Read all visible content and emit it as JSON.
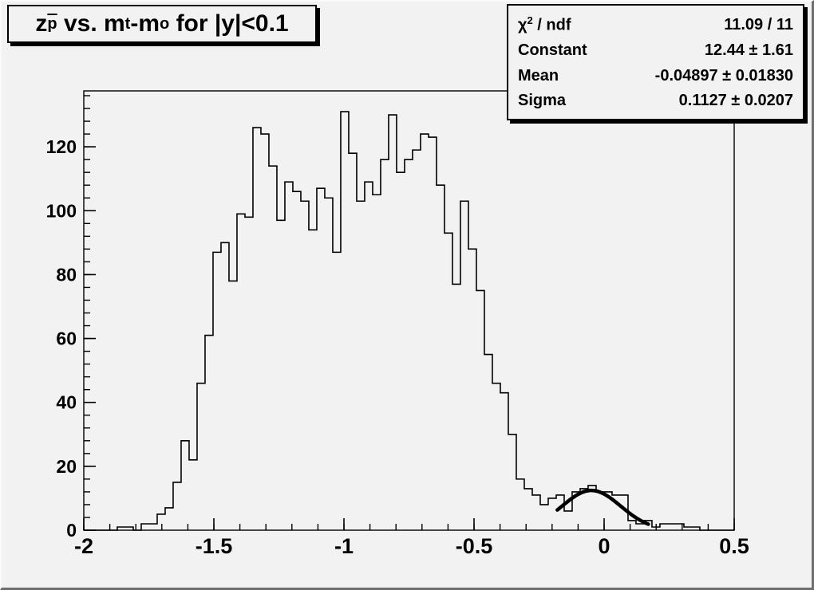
{
  "window": {
    "background_color": "#f2f2f2",
    "line_color": "#000000"
  },
  "title": {
    "full_text": "z_p̄ vs. m_t-m_o for |y|<0.1",
    "seg_base1": "z",
    "seg_sub1": "p",
    "seg_base2": " vs. m",
    "seg_sub2": "t",
    "seg_base3": "-m",
    "seg_sub3": "o",
    "seg_base4": " for |y|<0.1"
  },
  "stats": {
    "rows": [
      {
        "label_pre": "χ",
        "label_sup": "2",
        "label_post": " / ndf",
        "value": "11.09 / 11"
      },
      {
        "label_pre": "Constant",
        "value": "12.44 ± 1.61"
      },
      {
        "label_pre": "Mean",
        "value": "-0.04897 ± 0.01830"
      },
      {
        "label_pre": "Sigma",
        "value": "0.1127 ± 0.0207"
      }
    ]
  },
  "chart_data": {
    "type": "bar",
    "subtype": "histogram-step-outline",
    "title": "z_p̄ vs. m_t-m_o for |y|<0.1",
    "xlabel": "",
    "ylabel": "",
    "x_range": [
      -2.0,
      0.5
    ],
    "y_range": [
      0,
      137.5
    ],
    "grid": false,
    "legend_position": "none",
    "x_ticks": {
      "values": [
        -2,
        -1.5,
        -1,
        -0.5,
        0,
        0.5
      ],
      "labels": [
        "-2",
        "-1.5",
        "-1",
        "-0.5",
        "0",
        "0.5"
      ]
    },
    "y_ticks": {
      "values": [
        0,
        20,
        40,
        60,
        80,
        100,
        120
      ],
      "labels": [
        "0",
        "20",
        "40",
        "60",
        "80",
        "100",
        "120"
      ]
    },
    "x_minor_step": 0.1,
    "y_minor_step": 4,
    "histogram": {
      "bin_start": -1.994,
      "bin_width": 0.030675,
      "counts": [
        0,
        0,
        0,
        0,
        1,
        1,
        0,
        2,
        2,
        5,
        7,
        15,
        28,
        22,
        46,
        61,
        87,
        90,
        78,
        99,
        98,
        126,
        124,
        114,
        97,
        109,
        106,
        103,
        94,
        107,
        104,
        87,
        131,
        118,
        103,
        109,
        105,
        116,
        130,
        112,
        116,
        119,
        124,
        123,
        108,
        93,
        77,
        103,
        88,
        75,
        55,
        46,
        43,
        30,
        16,
        13,
        11,
        8,
        10,
        11,
        6,
        12,
        13,
        14,
        12,
        12,
        11,
        11,
        3,
        2,
        3,
        1,
        2,
        2,
        2,
        1,
        1,
        0,
        0,
        0,
        0
      ],
      "line_color": "#000000",
      "line_width": 1.6
    },
    "fit": {
      "type": "gaussian",
      "constant": 12.44,
      "mean": -0.04897,
      "sigma": 0.1127,
      "chi2": 11.09,
      "ndf": 11,
      "draw_range": [
        -0.18,
        0.17
      ],
      "line_color": "#000000",
      "line_width": 4.5
    }
  }
}
